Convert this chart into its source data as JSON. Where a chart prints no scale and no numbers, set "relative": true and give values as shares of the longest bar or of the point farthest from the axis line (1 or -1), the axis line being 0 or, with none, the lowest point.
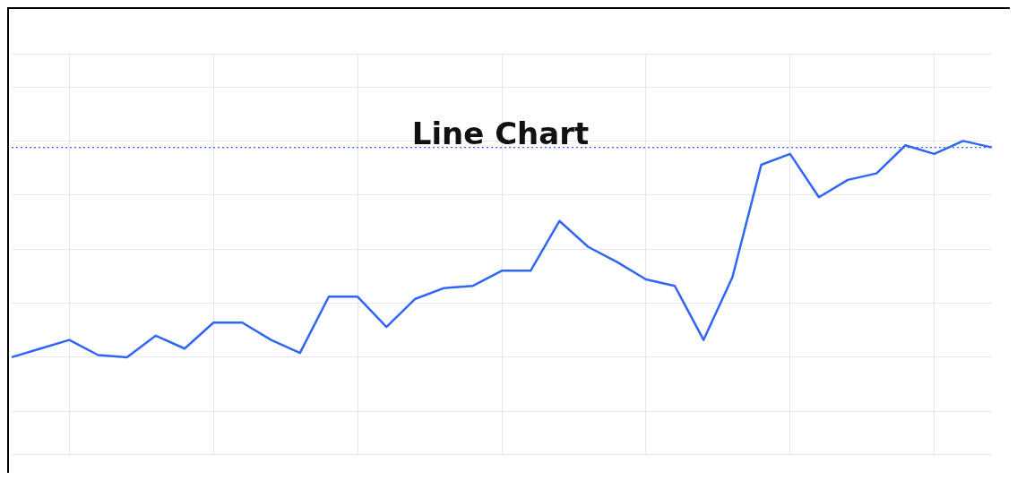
{
  "chart_data": {
    "type": "line",
    "title": "Line Chart",
    "relative": true,
    "categories": [
      null,
      null,
      null,
      null,
      null,
      null,
      null,
      null,
      null,
      null,
      null,
      null,
      null,
      null,
      null,
      null,
      null,
      null,
      null,
      null,
      null,
      null,
      null,
      null,
      null,
      null,
      null,
      null,
      null,
      null,
      null,
      null,
      null,
      null,
      null
    ],
    "series": [
      {
        "color": "#2f66f6",
        "values": [
          0,
          0.04,
          0.08,
          0.01,
          0,
          0.1,
          0.04,
          0.16,
          0.16,
          0.08,
          0.02,
          0.28,
          0.28,
          0.14,
          0.27,
          0.32,
          0.33,
          0.4,
          0.4,
          0.63,
          0.51,
          0.44,
          0.36,
          0.33,
          0.08,
          0.37,
          0.89,
          0.94,
          0.74,
          0.82,
          0.85,
          0.98,
          0.94,
          1.0,
          0.97
        ]
      }
    ],
    "ref_lines": [
      {
        "axis": "y",
        "value": 0.97,
        "color": "#2f66f6",
        "line_style": "dotted"
      }
    ],
    "grid": true,
    "legend": false,
    "marker": "none",
    "line_style": "solid"
  }
}
